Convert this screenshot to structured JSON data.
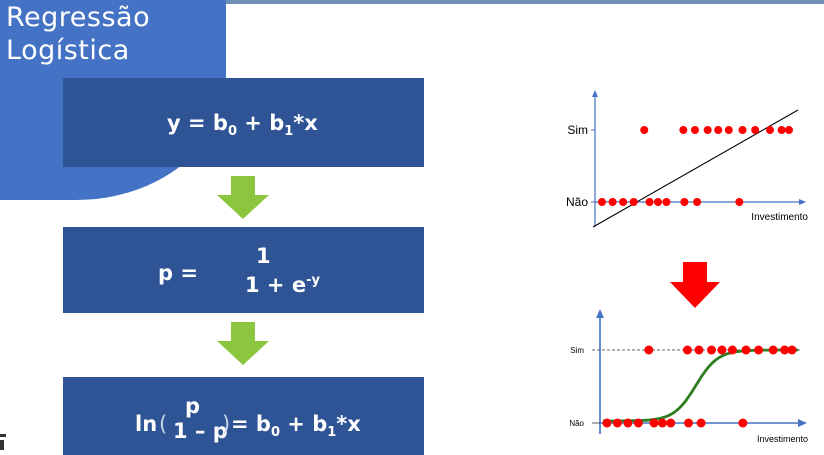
{
  "title": {
    "line1": "Regressão",
    "line2": "Logística"
  },
  "formulas": {
    "linear": {
      "lhs": "y = b",
      "sub0": "0",
      "mid": " + b",
      "sub1": "1",
      "tail": "*x"
    },
    "prob": {
      "lhs": "p =",
      "numerator": "1",
      "den_base": "1 + e",
      "den_exp": "-y"
    },
    "logit": {
      "ln": "ln",
      "frac_num": "p",
      "frac_den": "1 – p",
      "rhs_a": "= b",
      "sub0": "0",
      "rhs_b": " + b",
      "sub1": "1",
      "rhs_c": "*x"
    }
  },
  "chart_data": [
    {
      "type": "scatter",
      "title": "",
      "xlabel": "Investimento",
      "categories": [
        "Não",
        "Sim"
      ],
      "series": [
        {
          "values": [
            {
              "x": 1,
              "y": "Não"
            },
            {
              "x": 2,
              "y": "Não"
            },
            {
              "x": 3,
              "y": "Não"
            },
            {
              "x": 4,
              "y": "Não"
            },
            {
              "x": 5.5,
              "y": "Não"
            },
            {
              "x": 6.3,
              "y": "Não"
            },
            {
              "x": 7.1,
              "y": "Não"
            },
            {
              "x": 8.8,
              "y": "Não"
            },
            {
              "x": 10,
              "y": "Não"
            },
            {
              "x": 14,
              "y": "Não"
            },
            {
              "x": 5,
              "y": "Sim"
            },
            {
              "x": 8.7,
              "y": "Sim"
            },
            {
              "x": 9.8,
              "y": "Sim"
            },
            {
              "x": 11,
              "y": "Sim"
            },
            {
              "x": 12,
              "y": "Sim"
            },
            {
              "x": 13,
              "y": "Sim"
            },
            {
              "x": 14.3,
              "y": "Sim"
            },
            {
              "x": 15.5,
              "y": "Sim"
            },
            {
              "x": 16.9,
              "y": "Sim"
            },
            {
              "x": 18,
              "y": "Sim"
            },
            {
              "x": 18.7,
              "y": "Sim"
            }
          ]
        }
      ],
      "overlay": "linear-fit-line"
    },
    {
      "type": "scatter",
      "title": "",
      "xlabel": "Investimento",
      "categories": [
        "Não",
        "Sim"
      ],
      "series": [
        {
          "values": [
            {
              "x": 1,
              "y": "Não"
            },
            {
              "x": 2,
              "y": "Não"
            },
            {
              "x": 3,
              "y": "Não"
            },
            {
              "x": 4,
              "y": "Não"
            },
            {
              "x": 5.5,
              "y": "Não"
            },
            {
              "x": 6.3,
              "y": "Não"
            },
            {
              "x": 7.1,
              "y": "Não"
            },
            {
              "x": 8.8,
              "y": "Não"
            },
            {
              "x": 10,
              "y": "Não"
            },
            {
              "x": 14,
              "y": "Não"
            },
            {
              "x": 5,
              "y": "Sim"
            },
            {
              "x": 8.7,
              "y": "Sim"
            },
            {
              "x": 9.8,
              "y": "Sim"
            },
            {
              "x": 11,
              "y": "Sim"
            },
            {
              "x": 12,
              "y": "Sim"
            },
            {
              "x": 13,
              "y": "Sim"
            },
            {
              "x": 14.3,
              "y": "Sim"
            },
            {
              "x": 15.5,
              "y": "Sim"
            },
            {
              "x": 16.9,
              "y": "Sim"
            },
            {
              "x": 18,
              "y": "Sim"
            },
            {
              "x": 18.7,
              "y": "Sim"
            }
          ]
        }
      ],
      "overlay": "logistic-curve"
    }
  ],
  "colors": {
    "title_panel": "#4472c4",
    "formula_box": "#2f5496",
    "flow_arrow": "#8cc63f",
    "red_arrow": "#ff0000",
    "point": "#ff0000",
    "axis": "#4472c4",
    "curve": "#2e7d1f"
  },
  "icons": {
    "flow_arrow": "down-arrow-icon",
    "transform_arrow": "down-arrow-icon"
  }
}
